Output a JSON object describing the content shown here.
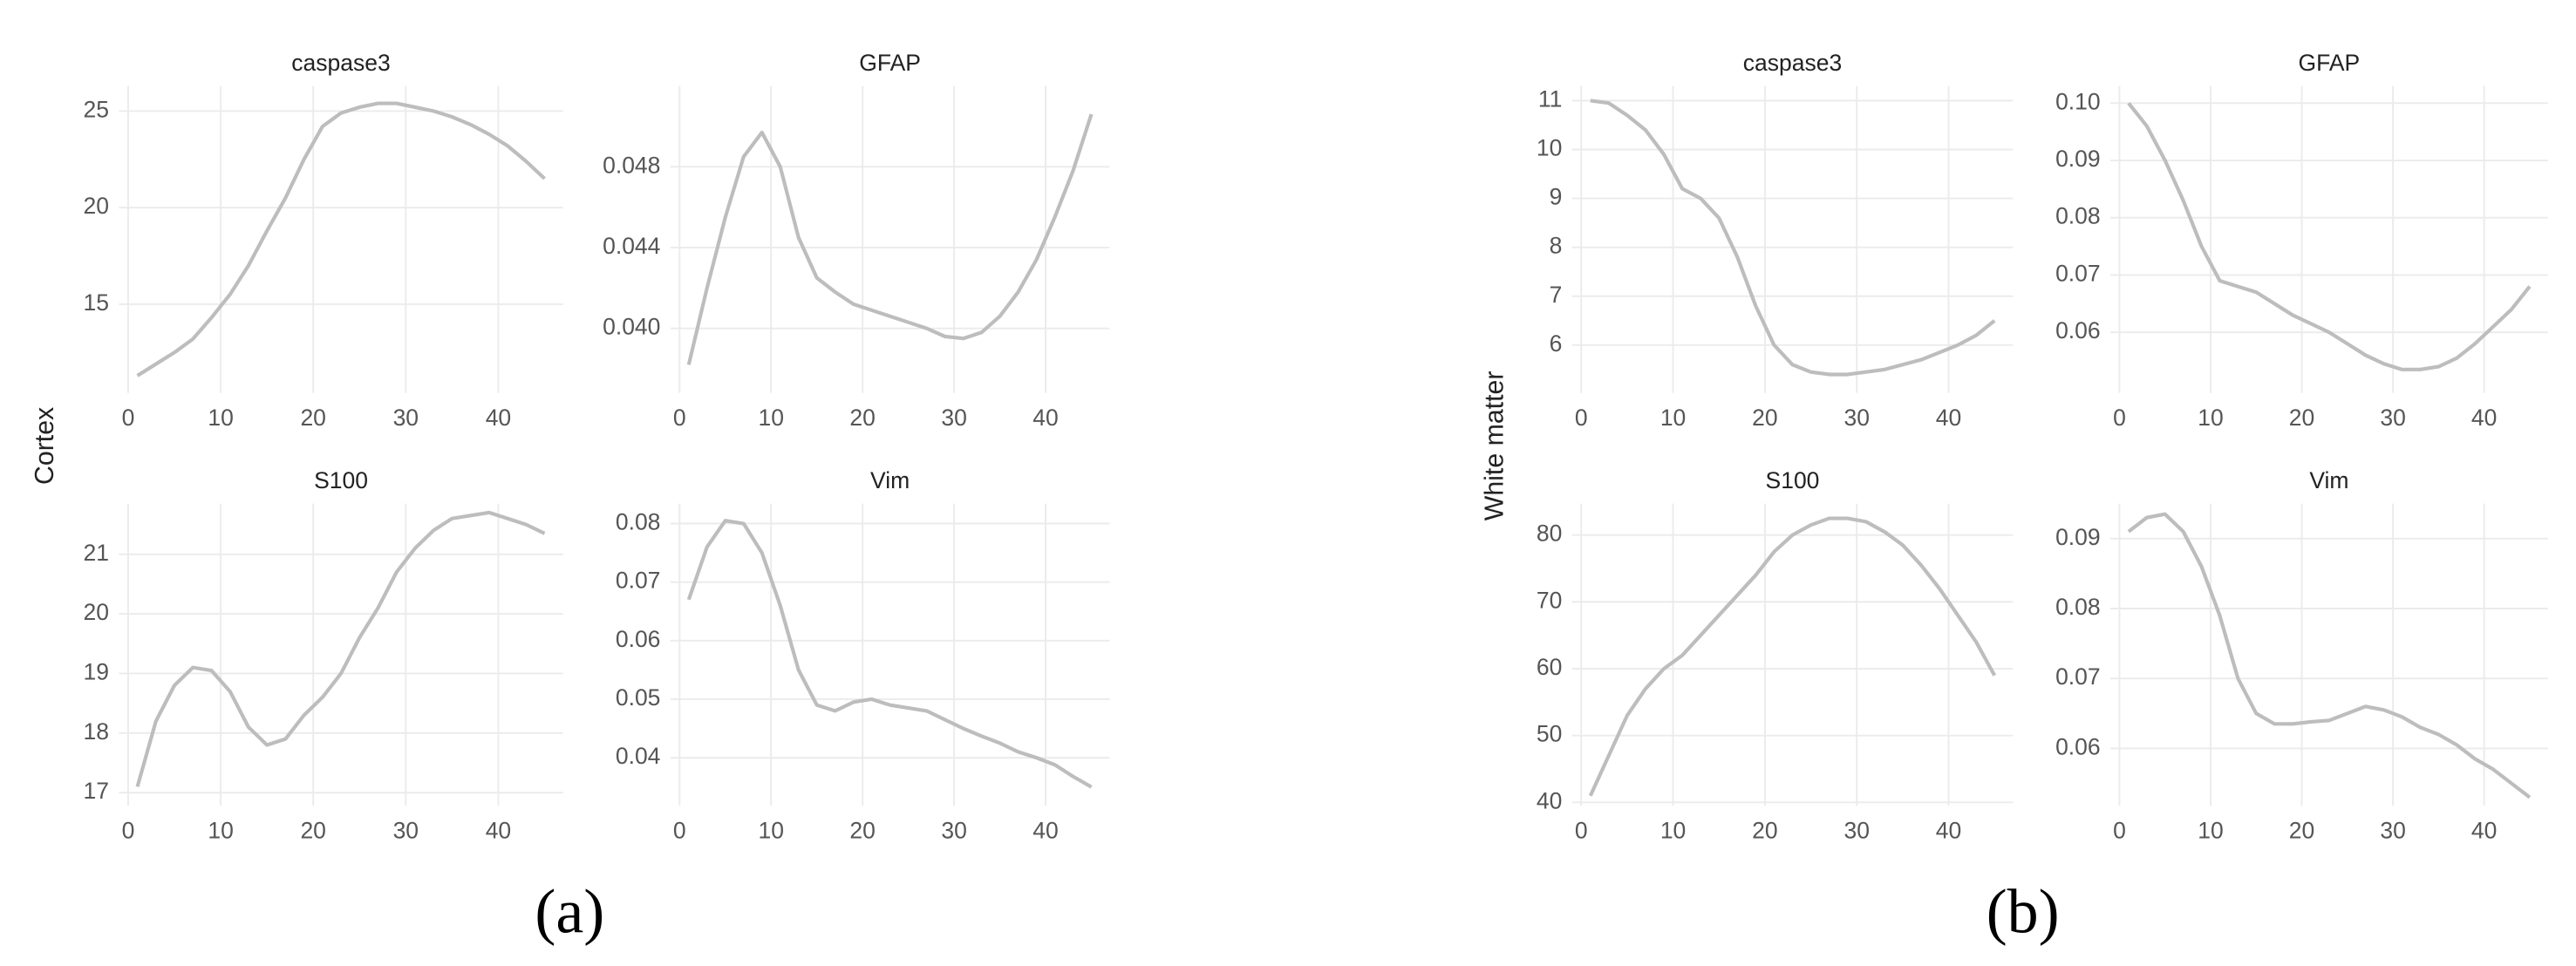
{
  "chart_data": [
    {
      "type": "line",
      "label": "(a)",
      "ylabel": "Cortex",
      "color": "#bdbdbd",
      "grid": true,
      "panels": [
        {
          "title": "caspase3",
          "x": [
            1,
            3,
            5,
            7,
            9,
            11,
            13,
            15,
            17,
            19,
            21,
            23,
            25,
            27,
            29,
            31,
            33,
            35,
            37,
            39,
            41,
            43,
            45
          ],
          "values": [
            11.3,
            11.9,
            12.5,
            13.2,
            14.3,
            15.5,
            17.0,
            18.8,
            20.5,
            22.5,
            24.2,
            24.9,
            25.2,
            25.4,
            25.4,
            25.2,
            25.0,
            24.7,
            24.3,
            23.8,
            23.2,
            22.4,
            21.5
          ],
          "xlim": [
            -1,
            47
          ],
          "ylim": [
            10.4,
            26.3
          ],
          "xticks": [
            0,
            10,
            20,
            30,
            40
          ],
          "yticks": [
            15,
            20,
            25
          ]
        },
        {
          "title": "GFAP",
          "x": [
            1,
            3,
            5,
            7,
            9,
            11,
            13,
            15,
            17,
            19,
            21,
            23,
            25,
            27,
            29,
            31,
            33,
            35,
            37,
            39,
            41,
            43,
            45
          ],
          "values": [
            0.0382,
            0.042,
            0.0455,
            0.0485,
            0.0497,
            0.048,
            0.0445,
            0.0425,
            0.0418,
            0.0412,
            0.0409,
            0.0406,
            0.0403,
            0.04,
            0.0396,
            0.0395,
            0.0398,
            0.0406,
            0.0418,
            0.0434,
            0.0455,
            0.0478,
            0.0506
          ],
          "xlim": [
            -1,
            47
          ],
          "ylim": [
            0.0368,
            0.052
          ],
          "xticks": [
            0,
            10,
            20,
            30,
            40
          ],
          "yticks": [
            {
              "value": 0.04,
              "label": "0.040"
            },
            0.044,
            0.048
          ]
        },
        {
          "title": "S100",
          "x": [
            1,
            3,
            5,
            7,
            9,
            11,
            13,
            15,
            17,
            19,
            21,
            23,
            25,
            27,
            29,
            31,
            33,
            35,
            37,
            39,
            41,
            43,
            45
          ],
          "values": [
            17.1,
            18.2,
            18.8,
            19.1,
            19.05,
            18.7,
            18.1,
            17.8,
            17.9,
            18.3,
            18.6,
            19.0,
            19.6,
            20.1,
            20.7,
            21.1,
            21.4,
            21.6,
            21.65,
            21.7,
            21.6,
            21.5,
            21.35
          ],
          "xlim": [
            -1,
            47
          ],
          "ylim": [
            16.78,
            21.85
          ],
          "xticks": [
            0,
            10,
            20,
            30,
            40
          ],
          "yticks": [
            17,
            18,
            19,
            20,
            21
          ]
        },
        {
          "title": "Vim",
          "x": [
            1,
            3,
            5,
            7,
            9,
            11,
            13,
            15,
            17,
            19,
            21,
            23,
            25,
            27,
            29,
            31,
            33,
            35,
            37,
            39,
            41,
            43,
            45
          ],
          "values": [
            0.067,
            0.076,
            0.0805,
            0.08,
            0.075,
            0.066,
            0.055,
            0.049,
            0.048,
            0.0495,
            0.05,
            0.049,
            0.0485,
            0.048,
            0.0465,
            0.045,
            0.0437,
            0.0425,
            0.041,
            0.04,
            0.0388,
            0.0368,
            0.035
          ],
          "xlim": [
            -1,
            47
          ],
          "ylim": [
            0.0318,
            0.0834
          ],
          "xticks": [
            0,
            10,
            20,
            30,
            40
          ],
          "yticks": [
            0.04,
            0.05,
            0.06,
            0.07,
            0.08
          ]
        }
      ]
    },
    {
      "type": "line",
      "label": "(b)",
      "ylabel": "White matter",
      "color": "#bdbdbd",
      "grid": true,
      "panels": [
        {
          "title": "caspase3",
          "x": [
            1,
            3,
            5,
            7,
            9,
            11,
            13,
            15,
            17,
            19,
            21,
            23,
            25,
            27,
            29,
            31,
            33,
            35,
            37,
            39,
            41,
            43,
            45
          ],
          "values": [
            11.0,
            10.95,
            10.7,
            10.4,
            9.9,
            9.2,
            9.0,
            8.6,
            7.8,
            6.8,
            6.0,
            5.6,
            5.45,
            5.4,
            5.4,
            5.45,
            5.5,
            5.6,
            5.7,
            5.85,
            6.0,
            6.2,
            6.5
          ],
          "xlim": [
            -1,
            47
          ],
          "ylim": [
            5.02,
            11.3
          ],
          "xticks": [
            0,
            10,
            20,
            30,
            40
          ],
          "yticks": [
            6,
            7,
            8,
            9,
            10,
            11
          ]
        },
        {
          "title": "GFAP",
          "x": [
            1,
            3,
            5,
            7,
            9,
            11,
            13,
            15,
            17,
            19,
            21,
            23,
            25,
            27,
            29,
            31,
            33,
            35,
            37,
            39,
            41,
            43,
            45
          ],
          "values": [
            0.1,
            0.096,
            0.09,
            0.083,
            0.075,
            0.069,
            0.068,
            0.067,
            0.065,
            0.063,
            0.0615,
            0.06,
            0.058,
            0.056,
            0.0545,
            0.0535,
            0.0535,
            0.054,
            0.0555,
            0.058,
            0.061,
            0.064,
            0.068
          ],
          "xlim": [
            -1,
            47
          ],
          "ylim": [
            0.0494,
            0.103
          ],
          "xticks": [
            0,
            10,
            20,
            30,
            40
          ],
          "yticks": [
            0.06,
            0.07,
            0.08,
            0.09,
            {
              "value": 0.1,
              "label": "0.10"
            }
          ]
        },
        {
          "title": "S100",
          "x": [
            1,
            3,
            5,
            7,
            9,
            11,
            13,
            15,
            17,
            19,
            21,
            23,
            25,
            27,
            29,
            31,
            33,
            35,
            37,
            39,
            41,
            43,
            45
          ],
          "values": [
            41,
            47,
            53,
            57,
            60,
            62,
            65,
            68,
            71,
            74,
            77.5,
            80,
            81.5,
            82.5,
            82.5,
            82,
            80.5,
            78.5,
            75.5,
            72,
            68,
            64,
            59
          ],
          "xlim": [
            -1,
            47
          ],
          "ylim": [
            39.5,
            84.7
          ],
          "xticks": [
            0,
            10,
            20,
            30,
            40
          ],
          "yticks": [
            40,
            50,
            60,
            70,
            80
          ]
        },
        {
          "title": "Vim",
          "x": [
            1,
            3,
            5,
            7,
            9,
            11,
            13,
            15,
            17,
            19,
            21,
            23,
            25,
            27,
            29,
            31,
            33,
            35,
            37,
            39,
            41,
            43,
            45
          ],
          "values": [
            0.091,
            0.093,
            0.0935,
            0.091,
            0.086,
            0.079,
            0.07,
            0.065,
            0.0635,
            0.0635,
            0.0638,
            0.064,
            0.065,
            0.066,
            0.0655,
            0.0645,
            0.063,
            0.062,
            0.0605,
            0.0585,
            0.057,
            0.055,
            0.053
          ],
          "xlim": [
            -1,
            47
          ],
          "ylim": [
            0.0518,
            0.095
          ],
          "xticks": [
            0,
            10,
            20,
            30,
            40
          ],
          "yticks": [
            0.06,
            0.07,
            0.08,
            0.09
          ]
        }
      ]
    }
  ]
}
